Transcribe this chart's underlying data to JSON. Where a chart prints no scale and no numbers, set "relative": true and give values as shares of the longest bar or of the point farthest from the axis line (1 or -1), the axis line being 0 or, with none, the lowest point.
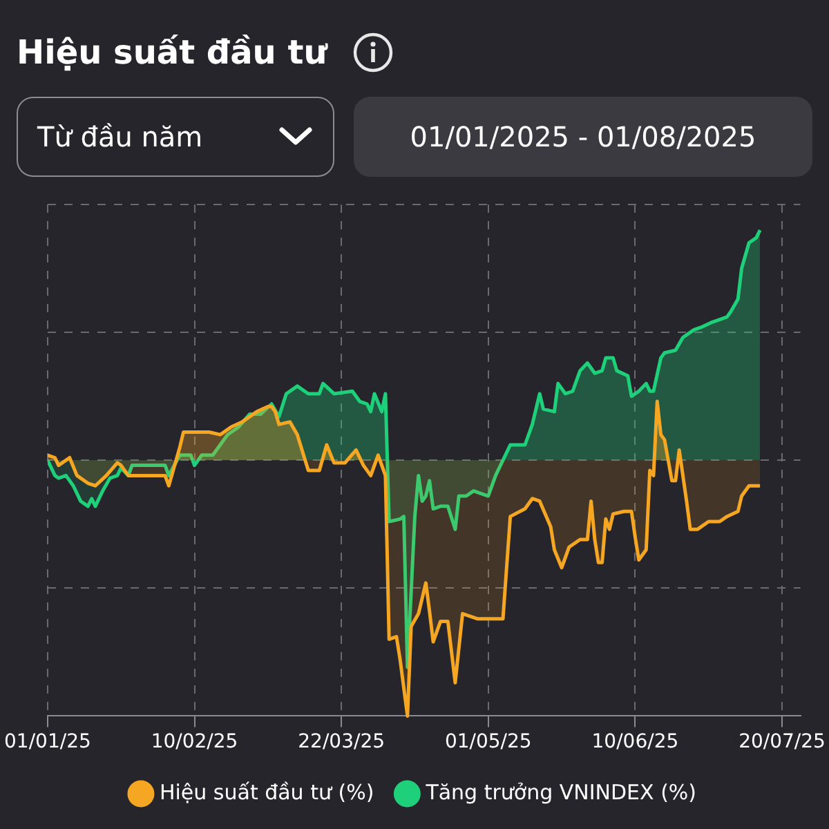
{
  "chart_data": {
    "type": "area",
    "title": "Hiệu suất đầu tư",
    "annotations": [
      "Từ đầu năm",
      "01/01/2025 - 01/08/2025"
    ],
    "relative": true,
    "grid": true,
    "legend": "bottom",
    "xlim": [
      "2025-01-01",
      "2025-07-25"
    ],
    "xticks": [
      {
        "value": "2025-01-01",
        "label": "01/01/25"
      },
      {
        "value": "2025-02-10",
        "label": "10/02/25"
      },
      {
        "value": "2025-03-22",
        "label": "22/03/25"
      },
      {
        "value": "2025-05-01",
        "label": "01/05/25"
      },
      {
        "value": "2025-06-10",
        "label": "10/06/25"
      },
      {
        "value": "2025-07-20",
        "label": "20/07/25"
      }
    ],
    "series": [
      {
        "name": "Hiệu suất đầu tư (%)",
        "color": "#f5a623",
        "x": [
          "2025-01-01",
          "2025-01-03",
          "2025-01-04",
          "2025-01-07",
          "2025-01-09",
          "2025-01-12",
          "2025-01-14",
          "2025-01-17",
          "2025-01-20",
          "2025-01-21",
          "2025-01-23",
          "2025-02-02",
          "2025-02-03",
          "2025-02-06",
          "2025-02-07",
          "2025-02-14",
          "2025-02-17",
          "2025-02-20",
          "2025-02-23",
          "2025-02-27",
          "2025-03-02",
          "2025-03-03",
          "2025-03-04",
          "2025-03-05",
          "2025-03-08",
          "2025-03-10",
          "2025-03-13",
          "2025-03-16",
          "2025-03-18",
          "2025-03-20",
          "2025-03-23",
          "2025-03-26",
          "2025-03-28",
          "2025-03-30",
          "2025-04-01",
          "2025-04-03",
          "2025-04-04",
          "2025-04-06",
          "2025-04-07",
          "2025-04-09",
          "2025-04-10",
          "2025-04-12",
          "2025-04-14",
          "2025-04-15",
          "2025-04-16",
          "2025-04-18",
          "2025-04-20",
          "2025-04-22",
          "2025-04-24",
          "2025-04-28",
          "2025-04-30",
          "2025-05-05",
          "2025-05-07",
          "2025-05-11",
          "2025-05-13",
          "2025-05-15",
          "2025-05-18",
          "2025-05-19",
          "2025-05-21",
          "2025-05-23",
          "2025-05-26",
          "2025-05-28",
          "2025-05-29",
          "2025-05-30",
          "2025-05-31",
          "2025-06-01",
          "2025-06-02",
          "2025-06-03",
          "2025-06-04",
          "2025-06-07",
          "2025-06-09",
          "2025-06-10",
          "2025-06-11",
          "2025-06-13",
          "2025-06-14",
          "2025-06-15",
          "2025-06-16",
          "2025-06-17",
          "2025-06-18",
          "2025-06-20",
          "2025-06-21",
          "2025-06-22",
          "2025-06-24",
          "2025-06-25",
          "2025-06-27",
          "2025-06-30",
          "2025-07-03",
          "2025-07-05",
          "2025-07-08",
          "2025-07-09",
          "2025-07-11",
          "2025-07-14"
        ],
        "values": [
          0.02,
          0.01,
          -0.02,
          0.01,
          -0.06,
          -0.09,
          -0.1,
          -0.06,
          -0.01,
          -0.02,
          -0.06,
          -0.06,
          -0.1,
          0.05,
          0.11,
          0.11,
          0.1,
          0.13,
          0.15,
          0.19,
          0.21,
          0.21,
          0.19,
          0.14,
          0.15,
          0.1,
          -0.04,
          -0.04,
          0.06,
          -0.01,
          -0.01,
          0.04,
          -0.02,
          -0.06,
          0.02,
          -0.06,
          -0.7,
          -0.69,
          -0.78,
          -1,
          -0.65,
          -0.6,
          -0.48,
          -0.59,
          -0.71,
          -0.63,
          -0.63,
          -0.87,
          -0.6,
          -0.62,
          -0.62,
          -0.62,
          -0.22,
          -0.19,
          -0.15,
          -0.16,
          -0.26,
          -0.35,
          -0.42,
          -0.34,
          -0.31,
          -0.31,
          -0.16,
          -0.31,
          -0.4,
          -0.4,
          -0.23,
          -0.27,
          -0.21,
          -0.2,
          -0.2,
          -0.3,
          -0.39,
          -0.35,
          -0.04,
          -0.06,
          0.23,
          0.1,
          0.08,
          -0.08,
          -0.08,
          0.04,
          -0.16,
          -0.27,
          -0.27,
          -0.24,
          -0.24,
          -0.22,
          -0.2,
          -0.14,
          -0.1,
          -0.1
        ]
      },
      {
        "name": "Tăng trưởng VNINDEX (%)",
        "color": "#1fd07a",
        "x": [
          "2025-01-01",
          "2025-01-03",
          "2025-01-04",
          "2025-01-06",
          "2025-01-08",
          "2025-01-10",
          "2025-01-12",
          "2025-01-13",
          "2025-01-14",
          "2025-01-16",
          "2025-01-18",
          "2025-01-20",
          "2025-01-21",
          "2025-01-23",
          "2025-01-24",
          "2025-02-02",
          "2025-02-03",
          "2025-02-06",
          "2025-02-09",
          "2025-02-10",
          "2025-02-12",
          "2025-02-15",
          "2025-02-19",
          "2025-02-22",
          "2025-02-25",
          "2025-02-28",
          "2025-03-03",
          "2025-03-05",
          "2025-03-07",
          "2025-03-10",
          "2025-03-13",
          "2025-03-16",
          "2025-03-17",
          "2025-03-20",
          "2025-03-25",
          "2025-03-27",
          "2025-03-29",
          "2025-03-30",
          "2025-03-31",
          "2025-04-02",
          "2025-04-03",
          "2025-04-04",
          "2025-04-07",
          "2025-04-08",
          "2025-04-09",
          "2025-04-11",
          "2025-04-12",
          "2025-04-13",
          "2025-04-14",
          "2025-04-15",
          "2025-04-16",
          "2025-04-18",
          "2025-04-20",
          "2025-04-22",
          "2025-04-23",
          "2025-04-25",
          "2025-04-27",
          "2025-05-01",
          "2025-05-03",
          "2025-05-07",
          "2025-05-10",
          "2025-05-11",
          "2025-05-13",
          "2025-05-15",
          "2025-05-16",
          "2025-05-19",
          "2025-05-20",
          "2025-05-22",
          "2025-05-24",
          "2025-05-26",
          "2025-05-28",
          "2025-05-30",
          "2025-06-01",
          "2025-06-02",
          "2025-06-04",
          "2025-06-05",
          "2025-06-08",
          "2025-06-09",
          "2025-06-11",
          "2025-06-13",
          "2025-06-14",
          "2025-06-15",
          "2025-06-17",
          "2025-06-18",
          "2025-06-21",
          "2025-06-23",
          "2025-06-26",
          "2025-06-28",
          "2025-07-01",
          "2025-07-05",
          "2025-07-06",
          "2025-07-08",
          "2025-07-09",
          "2025-07-11",
          "2025-07-13",
          "2025-07-14"
        ],
        "values": [
          0,
          -0.06,
          -0.07,
          -0.06,
          -0.1,
          -0.16,
          -0.18,
          -0.15,
          -0.18,
          -0.12,
          -0.07,
          -0.06,
          -0.03,
          -0.06,
          -0.02,
          -0.02,
          -0.06,
          0.02,
          0.02,
          -0.02,
          0.02,
          0.02,
          0.1,
          0.13,
          0.18,
          0.18,
          0.22,
          0.17,
          0.26,
          0.29,
          0.26,
          0.26,
          0.3,
          0.26,
          0.27,
          0.23,
          0.22,
          0.19,
          0.26,
          0.19,
          0.26,
          -0.24,
          -0.23,
          -0.22,
          -0.81,
          -0.22,
          -0.06,
          -0.16,
          -0.14,
          -0.08,
          -0.19,
          -0.18,
          -0.18,
          -0.27,
          -0.14,
          -0.14,
          -0.12,
          -0.14,
          -0.06,
          0.06,
          0.06,
          0.06,
          0.14,
          0.26,
          0.2,
          0.19,
          0.3,
          0.26,
          0.27,
          0.35,
          0.38,
          0.34,
          0.35,
          0.4,
          0.4,
          0.35,
          0.33,
          0.25,
          0.27,
          0.3,
          0.27,
          0.27,
          0.4,
          0.42,
          0.43,
          0.48,
          0.51,
          0.52,
          0.54,
          0.56,
          0.58,
          0.63,
          0.75,
          0.85,
          0.87,
          0.9
        ]
      }
    ]
  }
}
